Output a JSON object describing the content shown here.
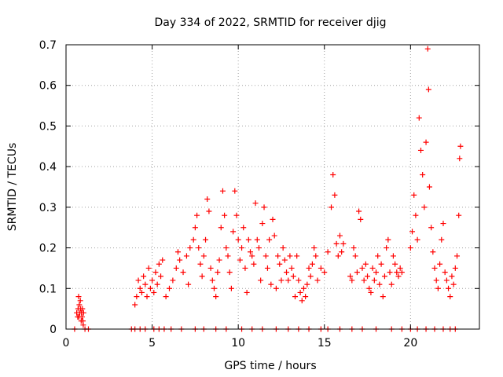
{
  "chart_data": {
    "type": "scatter",
    "title": "Day 334 of 2022, SRMTID for receiver djig",
    "xlabel": "GPS time / hours",
    "ylabel": "SRMTID / TECUs",
    "xlim": [
      0,
      24
    ],
    "ylim": [
      0,
      0.7
    ],
    "x_ticks": [
      0,
      5,
      10,
      15,
      20
    ],
    "x_tick_labels": [
      "0",
      "5",
      "10",
      "15",
      "20"
    ],
    "y_ticks": [
      0,
      0.1,
      0.2,
      0.3,
      0.4,
      0.5,
      0.6,
      0.7
    ],
    "y_tick_labels": [
      "0",
      "0.1",
      "0.2",
      "0.3",
      "0.4",
      "0.5",
      "0.6",
      "0.7"
    ],
    "grid": true,
    "marker": "plus",
    "colors": {
      "series": "#ff0000",
      "grid": "#a0a0a0",
      "axes": "#000000"
    },
    "series": [
      {
        "name": "SRMTID",
        "points": [
          [
            0.62,
            0.04
          ],
          [
            0.68,
            0.03
          ],
          [
            0.7,
            0.05
          ],
          [
            0.73,
            0.08
          ],
          [
            0.75,
            0.03
          ],
          [
            0.77,
            0.06
          ],
          [
            0.8,
            0.04
          ],
          [
            0.83,
            0.07
          ],
          [
            0.85,
            0.05
          ],
          [
            0.88,
            0.02
          ],
          [
            0.9,
            0.04
          ],
          [
            0.93,
            0.03
          ],
          [
            0.95,
            0.05
          ],
          [
            0.98,
            0.02
          ],
          [
            1.0,
            0.01
          ],
          [
            1.02,
            0.04
          ],
          [
            4.0,
            0.06
          ],
          [
            4.1,
            0.08
          ],
          [
            4.2,
            0.12
          ],
          [
            4.3,
            0.1
          ],
          [
            4.4,
            0.09
          ],
          [
            4.5,
            0.13
          ],
          [
            4.6,
            0.11
          ],
          [
            4.7,
            0.08
          ],
          [
            4.8,
            0.15
          ],
          [
            4.9,
            0.1
          ],
          [
            5.0,
            0.12
          ],
          [
            5.1,
            0.09
          ],
          [
            5.2,
            0.14
          ],
          [
            5.3,
            0.11
          ],
          [
            5.4,
            0.16
          ],
          [
            5.5,
            0.13
          ],
          [
            5.6,
            0.17
          ],
          [
            5.8,
            0.08
          ],
          [
            6.0,
            0.1
          ],
          [
            6.2,
            0.12
          ],
          [
            6.4,
            0.15
          ],
          [
            6.5,
            0.19
          ],
          [
            6.6,
            0.17
          ],
          [
            6.8,
            0.14
          ],
          [
            7.0,
            0.18
          ],
          [
            7.1,
            0.11
          ],
          [
            7.2,
            0.2
          ],
          [
            7.4,
            0.22
          ],
          [
            7.5,
            0.25
          ],
          [
            7.6,
            0.28
          ],
          [
            7.7,
            0.2
          ],
          [
            7.8,
            0.16
          ],
          [
            7.9,
            0.13
          ],
          [
            8.0,
            0.18
          ],
          [
            8.1,
            0.22
          ],
          [
            8.2,
            0.32
          ],
          [
            8.3,
            0.29
          ],
          [
            8.4,
            0.15
          ],
          [
            8.5,
            0.12
          ],
          [
            8.6,
            0.1
          ],
          [
            8.7,
            0.08
          ],
          [
            8.8,
            0.14
          ],
          [
            8.9,
            0.17
          ],
          [
            9.0,
            0.25
          ],
          [
            9.1,
            0.34
          ],
          [
            9.2,
            0.28
          ],
          [
            9.3,
            0.2
          ],
          [
            9.4,
            0.18
          ],
          [
            9.5,
            0.14
          ],
          [
            9.6,
            0.1
          ],
          [
            9.7,
            0.24
          ],
          [
            9.8,
            0.34
          ],
          [
            9.9,
            0.28
          ],
          [
            10.0,
            0.22
          ],
          [
            10.1,
            0.17
          ],
          [
            10.2,
            0.2
          ],
          [
            10.3,
            0.25
          ],
          [
            10.4,
            0.15
          ],
          [
            10.5,
            0.09
          ],
          [
            10.6,
            0.22
          ],
          [
            10.7,
            0.19
          ],
          [
            10.8,
            0.18
          ],
          [
            10.9,
            0.16
          ],
          [
            11.0,
            0.31
          ],
          [
            11.1,
            0.22
          ],
          [
            11.2,
            0.2
          ],
          [
            11.3,
            0.12
          ],
          [
            11.4,
            0.26
          ],
          [
            11.5,
            0.3
          ],
          [
            11.6,
            0.18
          ],
          [
            11.7,
            0.15
          ],
          [
            11.8,
            0.22
          ],
          [
            11.9,
            0.11
          ],
          [
            12.0,
            0.27
          ],
          [
            12.1,
            0.23
          ],
          [
            12.2,
            0.1
          ],
          [
            12.3,
            0.18
          ],
          [
            12.4,
            0.16
          ],
          [
            12.5,
            0.12
          ],
          [
            12.6,
            0.2
          ],
          [
            12.7,
            0.17
          ],
          [
            12.8,
            0.14
          ],
          [
            12.9,
            0.12
          ],
          [
            13.0,
            0.18
          ],
          [
            13.1,
            0.15
          ],
          [
            13.2,
            0.13
          ],
          [
            13.3,
            0.08
          ],
          [
            13.4,
            0.18
          ],
          [
            13.5,
            0.12
          ],
          [
            13.6,
            0.09
          ],
          [
            13.7,
            0.07
          ],
          [
            13.8,
            0.1
          ],
          [
            13.9,
            0.08
          ],
          [
            14.0,
            0.11
          ],
          [
            14.1,
            0.15
          ],
          [
            14.2,
            0.13
          ],
          [
            14.3,
            0.16
          ],
          [
            14.4,
            0.2
          ],
          [
            14.5,
            0.18
          ],
          [
            14.6,
            0.12
          ],
          [
            14.8,
            0.15
          ],
          [
            15.0,
            0.14
          ],
          [
            15.2,
            0.19
          ],
          [
            15.4,
            0.3
          ],
          [
            15.5,
            0.38
          ],
          [
            15.6,
            0.33
          ],
          [
            15.7,
            0.21
          ],
          [
            15.8,
            0.18
          ],
          [
            15.9,
            0.23
          ],
          [
            16.0,
            0.19
          ],
          [
            16.1,
            0.21
          ],
          [
            16.5,
            0.13
          ],
          [
            16.6,
            0.12
          ],
          [
            16.7,
            0.2
          ],
          [
            16.8,
            0.18
          ],
          [
            16.9,
            0.14
          ],
          [
            17.0,
            0.29
          ],
          [
            17.1,
            0.27
          ],
          [
            17.2,
            0.15
          ],
          [
            17.3,
            0.12
          ],
          [
            17.4,
            0.16
          ],
          [
            17.5,
            0.13
          ],
          [
            17.6,
            0.1
          ],
          [
            17.7,
            0.09
          ],
          [
            17.8,
            0.15
          ],
          [
            17.9,
            0.12
          ],
          [
            18.0,
            0.14
          ],
          [
            18.1,
            0.18
          ],
          [
            18.2,
            0.11
          ],
          [
            18.3,
            0.16
          ],
          [
            18.4,
            0.08
          ],
          [
            18.5,
            0.13
          ],
          [
            18.6,
            0.2
          ],
          [
            18.7,
            0.22
          ],
          [
            18.8,
            0.14
          ],
          [
            18.9,
            0.11
          ],
          [
            19.0,
            0.18
          ],
          [
            19.1,
            0.16
          ],
          [
            19.2,
            0.14
          ],
          [
            19.3,
            0.13
          ],
          [
            19.4,
            0.15
          ],
          [
            19.5,
            0.14
          ],
          [
            20.0,
            0.2
          ],
          [
            20.1,
            0.24
          ],
          [
            20.2,
            0.33
          ],
          [
            20.3,
            0.28
          ],
          [
            20.4,
            0.22
          ],
          [
            20.5,
            0.52
          ],
          [
            20.6,
            0.44
          ],
          [
            20.7,
            0.38
          ],
          [
            20.8,
            0.3
          ],
          [
            20.9,
            0.46
          ],
          [
            21.0,
            0.69
          ],
          [
            21.05,
            0.59
          ],
          [
            21.1,
            0.35
          ],
          [
            21.2,
            0.25
          ],
          [
            21.3,
            0.19
          ],
          [
            21.4,
            0.15
          ],
          [
            21.5,
            0.12
          ],
          [
            21.6,
            0.1
          ],
          [
            21.7,
            0.16
          ],
          [
            21.8,
            0.22
          ],
          [
            21.9,
            0.26
          ],
          [
            22.0,
            0.14
          ],
          [
            22.1,
            0.12
          ],
          [
            22.2,
            0.1
          ],
          [
            22.3,
            0.08
          ],
          [
            22.4,
            0.13
          ],
          [
            22.5,
            0.11
          ],
          [
            22.6,
            0.15
          ],
          [
            22.7,
            0.18
          ],
          [
            22.8,
            0.28
          ],
          [
            22.85,
            0.42
          ],
          [
            22.9,
            0.45
          ]
        ]
      },
      {
        "name": "zero-values",
        "points": [
          [
            0.5,
            0
          ],
          [
            1.1,
            0
          ],
          [
            1.3,
            0
          ],
          [
            3.8,
            0
          ],
          [
            4.0,
            0
          ],
          [
            4.3,
            0
          ],
          [
            4.6,
            0
          ],
          [
            5.1,
            0
          ],
          [
            5.4,
            0
          ],
          [
            5.7,
            0
          ],
          [
            6.1,
            0
          ],
          [
            6.7,
            0
          ],
          [
            7.5,
            0
          ],
          [
            8.0,
            0
          ],
          [
            8.7,
            0
          ],
          [
            9.3,
            0
          ],
          [
            10.2,
            0
          ],
          [
            10.8,
            0
          ],
          [
            11.4,
            0
          ],
          [
            12.2,
            0
          ],
          [
            12.9,
            0
          ],
          [
            13.5,
            0
          ],
          [
            14.1,
            0
          ],
          [
            14.8,
            0
          ],
          [
            15.2,
            0
          ],
          [
            15.9,
            0
          ],
          [
            16.6,
            0
          ],
          [
            17.2,
            0
          ],
          [
            18.0,
            0
          ],
          [
            18.9,
            0
          ],
          [
            19.5,
            0
          ],
          [
            20.0,
            0
          ],
          [
            20.4,
            0
          ],
          [
            20.9,
            0
          ],
          [
            21.4,
            0
          ],
          [
            21.9,
            0
          ],
          [
            22.3,
            0
          ],
          [
            22.6,
            0
          ]
        ]
      }
    ]
  }
}
